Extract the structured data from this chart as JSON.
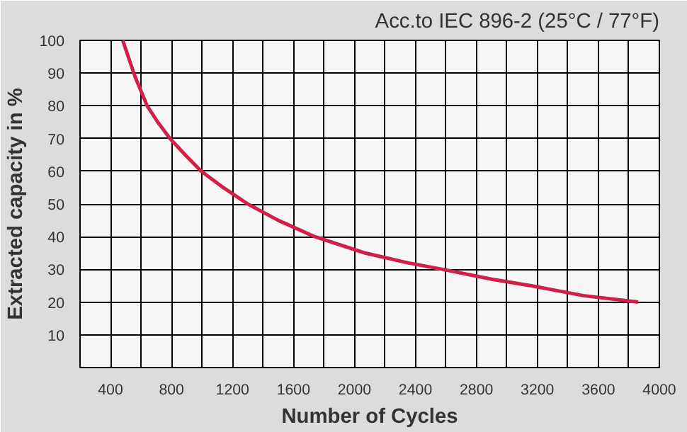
{
  "chart_data": {
    "type": "line",
    "title": "Acc.to IEC 896-2 (25°C / 77°F)",
    "xlabel": "Number of Cycles",
    "ylabel": "Extracted capacity in %",
    "xlim": [
      200,
      4000
    ],
    "ylim": [
      0,
      100
    ],
    "xticks": [
      {
        "value": 200,
        "label": null
      },
      400,
      {
        "value": 600,
        "label": null
      },
      800,
      {
        "value": 1000,
        "label": null
      },
      1200,
      {
        "value": 1400,
        "label": null
      },
      1600,
      {
        "value": 1800,
        "label": null
      },
      2000,
      {
        "value": 2200,
        "label": null
      },
      2400,
      {
        "value": 2600,
        "label": null
      },
      2800,
      {
        "value": 3000,
        "label": null
      },
      3200,
      {
        "value": 3400,
        "label": null
      },
      3600,
      {
        "value": 3800,
        "label": null
      },
      4000
    ],
    "yticks": [
      {
        "value": 0,
        "label": null
      },
      10,
      20,
      30,
      40,
      50,
      60,
      70,
      80,
      90,
      100
    ],
    "grid": true,
    "line_style": "solid",
    "series": [
      {
        "color": "#d0204a",
        "x": [
          480,
          560,
          640,
          710,
          790,
          890,
          995,
          1140,
          1300,
          1500,
          1740,
          2070,
          2350,
          2580,
          2900,
          3160,
          3500,
          3860
        ],
        "values": [
          100,
          89,
          80,
          75,
          70,
          65,
          60,
          55,
          50,
          45,
          40,
          35,
          32,
          30,
          27,
          25,
          22,
          20
        ]
      }
    ]
  }
}
